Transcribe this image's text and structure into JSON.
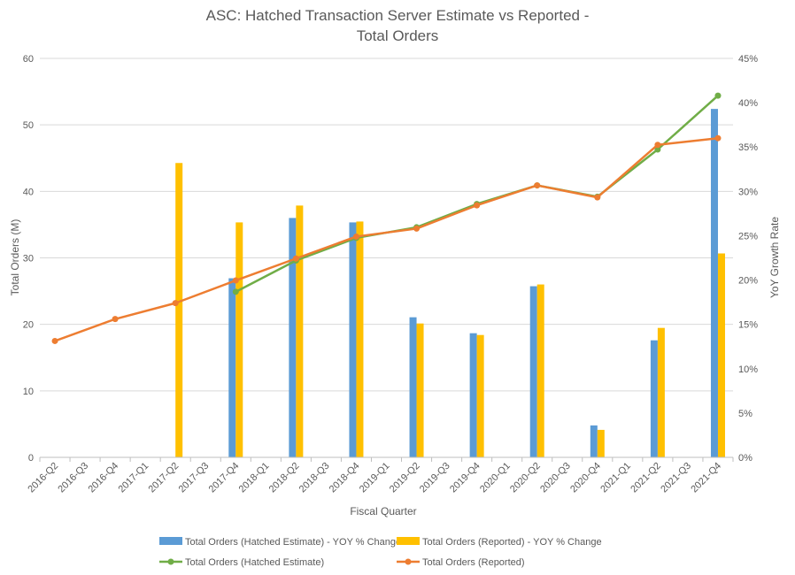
{
  "chart_data": {
    "type": "bar",
    "title": [
      "ASC: Hatched Transaction Server Estimate vs Reported -",
      "Total Orders"
    ],
    "xlabel": "Fiscal Quarter",
    "ylabel": "Total Orders (M)",
    "y2label": "YoY Growth Rate",
    "ylim": [
      0,
      60
    ],
    "y2lim": [
      0,
      0.45
    ],
    "yticks": [
      "0",
      "10",
      "20",
      "30",
      "40",
      "50",
      "60"
    ],
    "y2ticks": [
      "0%",
      "5%",
      "10%",
      "15%",
      "20%",
      "25%",
      "30%",
      "35%",
      "40%",
      "45%"
    ],
    "grid": true,
    "legend_position": "bottom",
    "categories": [
      "2016-Q2",
      "2016-Q3",
      "2016-Q4",
      "2017-Q1",
      "2017-Q2",
      "2017-Q3",
      "2017-Q4",
      "2018-Q1",
      "2018-Q2",
      "2018-Q3",
      "2018-Q4",
      "2019-Q1",
      "2019-Q2",
      "2019-Q3",
      "2019-Q4",
      "2020-Q1",
      "2020-Q2",
      "2020-Q3",
      "2020-Q4",
      "2021-Q1",
      "2021-Q2",
      "2021-Q3",
      "2021-Q4"
    ],
    "bar_series": [
      {
        "name": "Total Orders (Hatched Estimate) - YOY % Change",
        "color": "#5B9BD5",
        "axis": "right",
        "values": [
          null,
          null,
          null,
          null,
          null,
          null,
          0.202,
          null,
          0.27,
          null,
          0.265,
          null,
          0.158,
          null,
          0.14,
          null,
          0.193,
          null,
          0.036,
          null,
          0.132,
          null,
          0.393
        ]
      },
      {
        "name": "Total Orders (Reported) - YOY % Change",
        "color": "#FFC000",
        "axis": "right",
        "values": [
          null,
          null,
          null,
          null,
          0.332,
          null,
          0.265,
          null,
          0.284,
          null,
          0.266,
          null,
          0.151,
          null,
          0.138,
          null,
          0.195,
          null,
          0.031,
          null,
          0.146,
          null,
          0.23
        ]
      }
    ],
    "line_series": [
      {
        "name": "Total Orders (Hatched Estimate)",
        "color": "#70AD47",
        "axis": "left",
        "values": [
          null,
          null,
          null,
          null,
          null,
          null,
          24.9,
          null,
          29.6,
          null,
          33.0,
          null,
          34.6,
          null,
          38.1,
          null,
          40.9,
          null,
          39.2,
          null,
          46.3,
          null,
          54.4
        ]
      },
      {
        "name": "Total Orders (Reported)",
        "color": "#ED7D31",
        "axis": "left",
        "values": [
          17.5,
          null,
          20.8,
          null,
          23.2,
          null,
          26.6,
          null,
          29.9,
          null,
          33.2,
          null,
          34.4,
          null,
          37.9,
          null,
          40.9,
          null,
          39.1,
          null,
          47.0,
          null,
          48.0
        ]
      }
    ]
  }
}
